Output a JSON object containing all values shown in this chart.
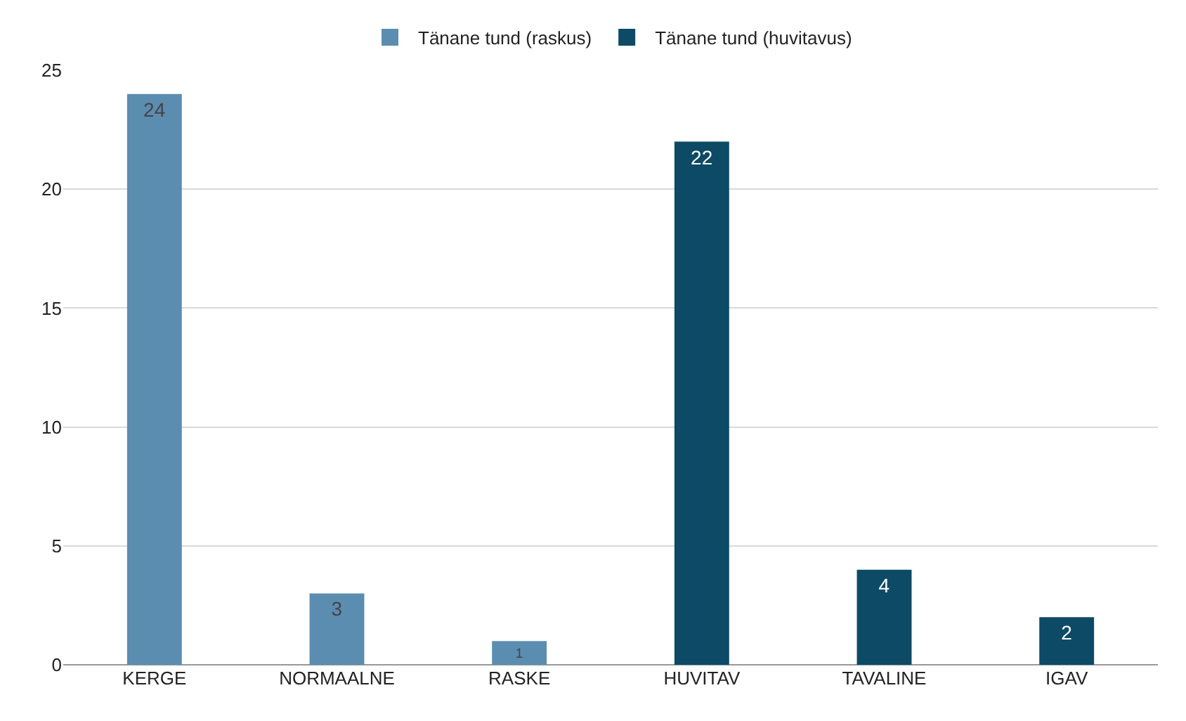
{
  "chart_data": {
    "type": "bar",
    "categories": [
      "KERGE",
      "NORMAALNE",
      "RASKE",
      "HUVITAV",
      "TAVALINE",
      "IGAV"
    ],
    "series": [
      {
        "name": "Tänane tund (raskus)",
        "color": "#5b8db0",
        "values": [
          24,
          3,
          1,
          null,
          null,
          null
        ]
      },
      {
        "name": "Tänane tund (huvitavus)",
        "color": "#0d4a66",
        "values": [
          null,
          null,
          null,
          22,
          4,
          2
        ]
      }
    ],
    "ylim": [
      0,
      25
    ],
    "yticks": [
      0,
      5,
      10,
      15,
      20,
      25
    ],
    "grid": "y",
    "legend": "top",
    "data_labels": true
  }
}
